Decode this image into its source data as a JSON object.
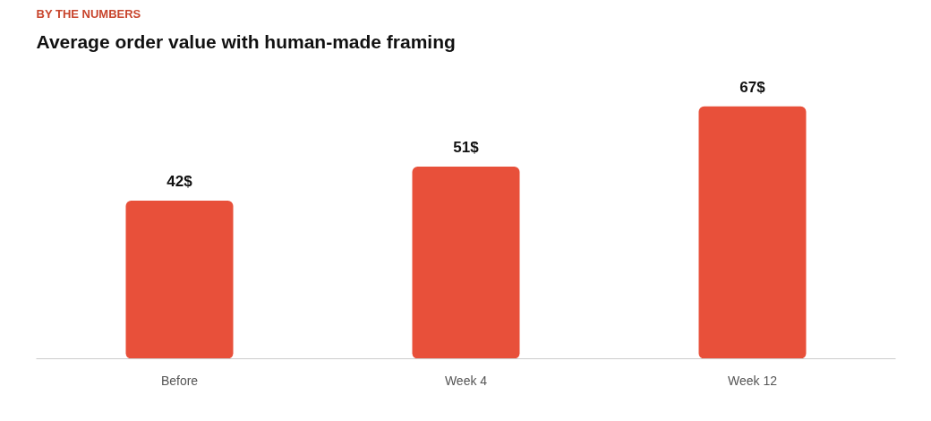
{
  "chart_data": {
    "type": "bar",
    "subtitle": "BY THE NUMBERS",
    "title": "Average order value with human-made framing",
    "categories": [
      "Before",
      "Week 4",
      "Week 12"
    ],
    "values": [
      42,
      51,
      67
    ],
    "value_labels": [
      "42$",
      "51$",
      "67$"
    ],
    "color": "#e8503a"
  }
}
